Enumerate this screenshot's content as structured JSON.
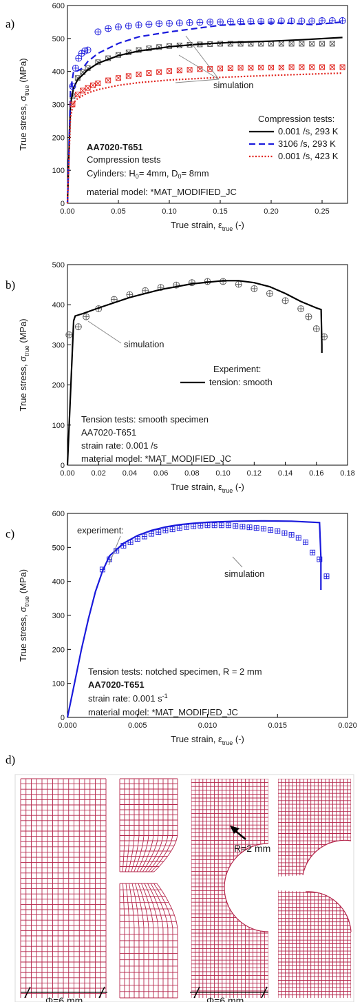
{
  "panels": {
    "a": "a)",
    "b": "b)",
    "c": "c)",
    "d": "d)"
  },
  "chart_data": [
    {
      "id": "a",
      "type": "line",
      "xlabel": "True strain, ε_true (-)",
      "ylabel": "True stress, σ_true (MPa)",
      "xlabel_parts": [
        "True strain, ε",
        "true",
        " (-)"
      ],
      "ylabel_parts": [
        "True stress, σ",
        "true",
        " (MPa)"
      ],
      "xlim": [
        0,
        0.275
      ],
      "ylim": [
        0,
        600
      ],
      "xticks": [
        0.0,
        0.05,
        0.1,
        0.15,
        0.2,
        0.25
      ],
      "xtick_labels": [
        "0.00",
        "0.05",
        "0.10",
        "0.15",
        "0.20",
        "0.25"
      ],
      "yticks": [
        0,
        100,
        200,
        300,
        400,
        500,
        600
      ],
      "ytick_labels": [
        "0",
        "100",
        "200",
        "300",
        "400",
        "500",
        "600"
      ],
      "legend_title": "Compression tests:",
      "legend_position": "right",
      "series": [
        {
          "name": "0.001 /s, 293 K",
          "color": "#000000",
          "dash": "solid",
          "marker": "x-square",
          "x": [
            0,
            0.003,
            0.006,
            0.01,
            0.02,
            0.03,
            0.05,
            0.07,
            0.1,
            0.13,
            0.16,
            0.2,
            0.23,
            0.27
          ],
          "y": [
            0,
            300,
            350,
            375,
            405,
            425,
            448,
            462,
            475,
            483,
            488,
            492,
            496,
            503
          ],
          "marker_x": [
            0.005,
            0.01,
            0.015,
            0.02,
            0.03,
            0.04,
            0.05,
            0.06,
            0.07,
            0.08,
            0.09,
            0.1,
            0.11,
            0.12,
            0.13,
            0.14,
            0.15,
            0.16,
            0.17,
            0.18,
            0.19,
            0.2,
            0.21,
            0.22,
            0.23,
            0.24,
            0.25,
            0.26
          ],
          "marker_y": [
            325,
            380,
            398,
            410,
            428,
            440,
            450,
            458,
            465,
            470,
            474,
            477,
            479,
            481,
            482,
            483,
            484,
            484,
            484,
            484,
            484,
            484,
            484,
            484,
            484,
            484,
            484,
            484
          ]
        },
        {
          "name": "3106 /s, 293 K",
          "color": "#1a1adc",
          "dash": "dash",
          "marker": "plus-circle",
          "x": [
            0,
            0.003,
            0.006,
            0.01,
            0.015,
            0.02,
            0.03,
            0.05,
            0.07,
            0.1,
            0.13,
            0.15,
            0.18,
            0.2,
            0.22,
            0.24,
            0.26,
            0.27
          ],
          "y": [
            0,
            340,
            400,
            402,
            410,
            430,
            455,
            485,
            505,
            520,
            532,
            540,
            545,
            547,
            546,
            542,
            547,
            550
          ],
          "marker_x": [
            0.005,
            0.008,
            0.011,
            0.014,
            0.017,
            0.02,
            0.03,
            0.04,
            0.05,
            0.06,
            0.07,
            0.08,
            0.09,
            0.1,
            0.11,
            0.12,
            0.13,
            0.14,
            0.15,
            0.16,
            0.17,
            0.18,
            0.19,
            0.2,
            0.21,
            0.22,
            0.23,
            0.24,
            0.25,
            0.26,
            0.27
          ],
          "marker_y": [
            355,
            410,
            440,
            455,
            462,
            465,
            520,
            530,
            535,
            538,
            541,
            543,
            545,
            546,
            547,
            548,
            549,
            550,
            550,
            551,
            551,
            552,
            552,
            552,
            553,
            553,
            553,
            553,
            554,
            554,
            554
          ]
        },
        {
          "name": "0.001 /s, 423 K",
          "color": "#e0201a",
          "dash": "dot",
          "marker": "x-square",
          "x": [
            0,
            0.003,
            0.006,
            0.01,
            0.02,
            0.03,
            0.05,
            0.07,
            0.1,
            0.15,
            0.2,
            0.25,
            0.27
          ],
          "y": [
            0,
            260,
            305,
            318,
            335,
            345,
            358,
            366,
            374,
            382,
            388,
            393,
            395
          ],
          "marker_x": [
            0.005,
            0.01,
            0.015,
            0.02,
            0.025,
            0.03,
            0.04,
            0.05,
            0.06,
            0.07,
            0.08,
            0.09,
            0.1,
            0.11,
            0.12,
            0.13,
            0.14,
            0.15,
            0.16,
            0.17,
            0.18,
            0.19,
            0.2,
            0.21,
            0.22,
            0.23,
            0.24,
            0.25,
            0.26,
            0.27
          ],
          "marker_y": [
            300,
            330,
            342,
            350,
            358,
            364,
            373,
            380,
            386,
            391,
            395,
            398,
            401,
            403,
            405,
            407,
            408,
            409,
            410,
            411,
            411,
            412,
            412,
            412,
            413,
            413,
            413,
            413,
            413,
            413
          ]
        }
      ],
      "annotations": {
        "simulation": "simulation",
        "material": "AA7020-T651",
        "test": "Compression tests",
        "cyl_parts": [
          "Cylinders: H",
          "0",
          "= 4mm, D",
          "0",
          "= 8mm"
        ],
        "model": "material model: *MAT_MODIFIED_JC"
      }
    },
    {
      "id": "b",
      "type": "line",
      "xlabel_parts": [
        "True strain, ε",
        "true",
        " (-)"
      ],
      "ylabel_parts": [
        "True stress, σ",
        "true",
        " (MPa)"
      ],
      "xlim": [
        0,
        0.18
      ],
      "ylim": [
        0,
        500
      ],
      "xticks": [
        0.0,
        0.02,
        0.04,
        0.06,
        0.08,
        0.1,
        0.12,
        0.14,
        0.16,
        0.18
      ],
      "xtick_labels": [
        "0.00",
        "0.02",
        "0.04",
        "0.06",
        "0.08",
        "0.10",
        "0.12",
        "0.14",
        "0.16",
        "0.18"
      ],
      "yticks": [
        0,
        100,
        200,
        300,
        400,
        500
      ],
      "ytick_labels": [
        "0",
        "100",
        "200",
        "300",
        "400",
        "500"
      ],
      "legend_title": "Experiment:",
      "legend_position": "center-right",
      "series": [
        {
          "name": "tension: smooth",
          "color": "#000000",
          "dash": "solid",
          "marker": "plus-circle",
          "x": [
            0,
            0.004,
            0.005,
            0.01,
            0.02,
            0.04,
            0.06,
            0.08,
            0.1,
            0.11,
            0.12,
            0.13,
            0.14,
            0.15,
            0.16,
            0.163,
            0.1635,
            0.1635
          ],
          "y": [
            0,
            360,
            372,
            378,
            392,
            418,
            438,
            452,
            460,
            460,
            455,
            445,
            428,
            408,
            392,
            388,
            300,
            280
          ],
          "marker_x": [
            0.001,
            0.007,
            0.012,
            0.02,
            0.03,
            0.04,
            0.05,
            0.06,
            0.07,
            0.08,
            0.09,
            0.1,
            0.11,
            0.12,
            0.13,
            0.14,
            0.15,
            0.155,
            0.16,
            0.165
          ],
          "marker_y": [
            325,
            345,
            370,
            390,
            413,
            425,
            435,
            443,
            449,
            455,
            458,
            458,
            451,
            440,
            428,
            410,
            390,
            370,
            340,
            320
          ]
        }
      ],
      "annotations": {
        "simulation": "simulation",
        "line1": "Tension tests: smooth specimen",
        "line2": "AA7020-T651",
        "line3": "strain rate: 0.001 /s",
        "line4": "material model: *MAT_MODIFIED_JC"
      }
    },
    {
      "id": "c",
      "type": "line",
      "xlabel_parts": [
        "True strain, ε",
        "true",
        " (-)"
      ],
      "ylabel_parts": [
        "True stress, σ",
        "true",
        " (MPa)"
      ],
      "xlim": [
        0,
        0.02
      ],
      "ylim": [
        0,
        600
      ],
      "xticks": [
        0.0,
        0.005,
        0.01,
        0.015,
        0.02
      ],
      "xtick_labels": [
        "0.000",
        "0.005",
        "0.010",
        "0.015",
        "0.020"
      ],
      "yticks": [
        0,
        100,
        200,
        300,
        400,
        500,
        600
      ],
      "ytick_labels": [
        "0",
        "100",
        "200",
        "300",
        "400",
        "500",
        "600"
      ],
      "series": [
        {
          "name": "experiment:",
          "color": "#1a1adc",
          "dash": "solid",
          "marker": "plus-square",
          "x": [
            0,
            0.0005,
            0.001,
            0.0015,
            0.002,
            0.0025,
            0.003,
            0.004,
            0.005,
            0.006,
            0.007,
            0.008,
            0.009,
            0.01,
            0.012,
            0.014,
            0.016,
            0.018,
            0.0181,
            0.0181
          ],
          "y": [
            0,
            100,
            200,
            290,
            370,
            430,
            475,
            512,
            535,
            550,
            560,
            567,
            571,
            574,
            577,
            578,
            577,
            573,
            470,
            375
          ],
          "marker_x": [
            0.0025,
            0.003,
            0.0035,
            0.004,
            0.0045,
            0.005,
            0.0055,
            0.006,
            0.0065,
            0.007,
            0.0075,
            0.008,
            0.0085,
            0.009,
            0.0095,
            0.01,
            0.0105,
            0.011,
            0.0115,
            0.012,
            0.0125,
            0.013,
            0.0135,
            0.014,
            0.0145,
            0.015,
            0.0155,
            0.016,
            0.0165,
            0.017,
            0.0175,
            0.018,
            0.0185
          ],
          "marker_y": [
            435,
            465,
            490,
            505,
            515,
            525,
            532,
            540,
            545,
            550,
            553,
            557,
            560,
            562,
            564,
            565,
            565,
            565,
            565,
            563,
            561,
            559,
            557,
            555,
            551,
            548,
            542,
            537,
            528,
            515,
            485,
            465,
            415
          ]
        }
      ],
      "annotations": {
        "simulation": "simulation",
        "line1": "Tension tests: notched specimen, R = 2 mm",
        "line2": "AA7020-T651",
        "line3_parts": [
          "strain rate: 0.001 s",
          "-1"
        ],
        "line4": "material model: *MAT_MODIFIED_JC"
      }
    }
  ],
  "meshes": {
    "radius_label": "R=2 mm",
    "dim_left": "Φ=6 mm",
    "dim_right": "Φ=6 mm"
  }
}
